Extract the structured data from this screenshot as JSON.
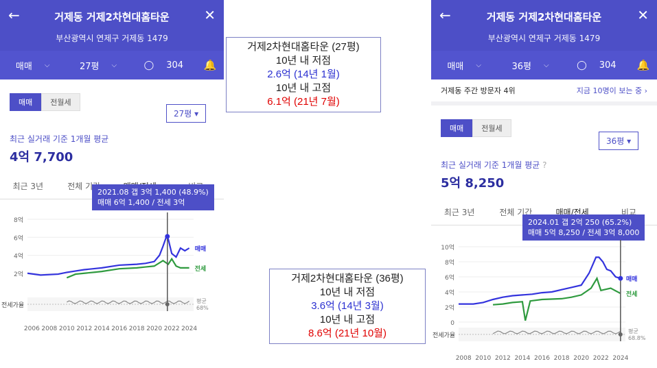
{
  "p1": {
    "title": "거제동 거제2차현대홈타운",
    "address": "부산광역시 연제구 거제동 1479",
    "bar": {
      "type": "매매",
      "size": "27평",
      "comments": "304"
    },
    "toggle": [
      "매매",
      "전월세"
    ],
    "size_select": "27평 ▾",
    "label": "최근 실거래 기준 1개월 평균",
    "price": "4억 7,700",
    "tabs": [
      "최근 3년",
      "전체 기간",
      "매매/전세",
      "비교"
    ],
    "tooltip": [
      "2021.08  갭 3억 1,400 (48.9%)",
      "매매 6억 1,400 / 전세 3억"
    ],
    "y_ticks": [
      "8억",
      "6억",
      "4억",
      "2억"
    ],
    "x_ticks": [
      "2006",
      "2008",
      "2010",
      "2012",
      "2014",
      "2016",
      "2018",
      "2020",
      "2022",
      "2024"
    ],
    "legend_sale": "매매",
    "legend_jeonse": "전세",
    "ratio_label": "전세가율",
    "avg_label": "평균",
    "avg_value": "68%"
  },
  "p2": {
    "title": "거제동 거제2차현대홈타운",
    "address": "부산광역시 연제구 거제동 1479",
    "bar": {
      "type": "매매",
      "size": "36평",
      "comments": "304"
    },
    "visit_left": "거제동 주간 방문자 4위",
    "visit_right": "지금 10명이 보는 중 ›",
    "toggle": [
      "매매",
      "전월세"
    ],
    "size_select": "36평 ▾",
    "label": "최근 실거래 기준 1개월 평균",
    "price": "5억 8,250",
    "tabs": [
      "최근 3년",
      "전체 기간",
      "매매/전세",
      "비교"
    ],
    "tooltip": [
      "2024.01  갭 2억 250 (65.2%)",
      "매매 5억 8,250 / 전세 3억 8,000"
    ],
    "y_ticks": [
      "10억",
      "8억",
      "6억",
      "4억",
      "2억",
      "0"
    ],
    "x_ticks": [
      "2008",
      "2010",
      "2012",
      "2014",
      "2016",
      "2018",
      "2020",
      "2022",
      "2024"
    ],
    "legend_sale": "매매",
    "legend_jeonse": "전세",
    "ratio_label": "전세가율",
    "avg_label": "평균",
    "avg_value": "68.8%"
  },
  "note1": {
    "l1": "거제2차현대홈타운 (27평)",
    "l2": "10년 내 저점",
    "l3": "2.6억 (14년 1월)",
    "l4": "10년 내 고점",
    "l5": "6.1억 (21년 7월)"
  },
  "note2": {
    "l1": "거제2차현대홈타운 (36평)",
    "l2": "10년 내 저점",
    "l3": "3.6억 (14년 3월)",
    "l4": "10년 내 고점",
    "l5": "8.6억 (21년 10월)"
  },
  "colors": {
    "brand": "#4d4fc7",
    "sale": "#3333dd",
    "jeonse": "#2e9a3e",
    "ratio": "#888888"
  },
  "chart_data": [
    {
      "type": "line",
      "title": "27평 매매/전세",
      "x_range": [
        2005.5,
        2024.5
      ],
      "ylim": [
        0,
        8
      ],
      "unit": "억",
      "series": [
        {
          "name": "매매",
          "x": [
            2005.5,
            2007,
            2009,
            2010,
            2012,
            2013,
            2014,
            2016,
            2018,
            2019,
            2020,
            2020.6,
            2021,
            2021.4,
            2021.6,
            2022,
            2022.5,
            2023,
            2023.5,
            2024
          ],
          "values": [
            2.0,
            1.8,
            1.9,
            2.1,
            2.4,
            2.5,
            2.6,
            2.9,
            3.0,
            3.1,
            3.3,
            4.0,
            5.0,
            6.1,
            5.8,
            4.2,
            3.8,
            4.8,
            4.5,
            4.8
          ]
        },
        {
          "name": "전세",
          "x": [
            2010,
            2011,
            2012,
            2014,
            2016,
            2018,
            2019,
            2020,
            2021,
            2021.6,
            2022,
            2022.5,
            2023,
            2024
          ],
          "values": [
            1.5,
            1.9,
            2.0,
            2.2,
            2.5,
            2.6,
            2.7,
            2.8,
            3.4,
            3.0,
            3.6,
            2.8,
            2.6,
            2.6
          ]
        }
      ]
    },
    {
      "type": "line",
      "title": "36평 매매/전세",
      "x_range": [
        2007.5,
        2024.5
      ],
      "ylim": [
        0,
        10
      ],
      "unit": "억",
      "series": [
        {
          "name": "매매",
          "x": [
            2007.5,
            2009,
            2010,
            2011,
            2012,
            2013,
            2014,
            2015,
            2016,
            2017,
            2018,
            2019,
            2020,
            2020.8,
            2021.5,
            2021.8,
            2022.2,
            2022.6,
            2023,
            2023.5,
            2024
          ],
          "values": [
            2.4,
            2.4,
            2.6,
            3.0,
            3.3,
            3.5,
            3.6,
            3.7,
            3.9,
            4.0,
            4.3,
            4.6,
            4.9,
            6.5,
            8.6,
            8.6,
            8.0,
            7.0,
            6.8,
            6.0,
            5.8
          ]
        },
        {
          "name": "전세",
          "x": [
            2011,
            2012,
            2013,
            2014,
            2014.3,
            2014.8,
            2016,
            2018,
            2019,
            2020,
            2021,
            2021.6,
            2022,
            2023,
            2024
          ],
          "values": [
            2.3,
            2.4,
            2.6,
            2.7,
            0.2,
            2.8,
            3.0,
            3.1,
            3.3,
            3.6,
            4.5,
            5.8,
            4.2,
            4.5,
            3.8
          ]
        }
      ]
    }
  ]
}
